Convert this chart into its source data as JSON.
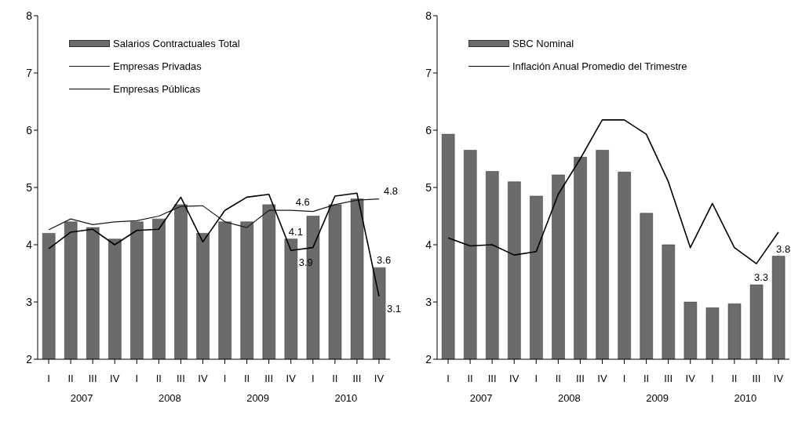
{
  "chart_data": [
    {
      "type": "bar",
      "categories": [
        "I",
        "II",
        "III",
        "IV",
        "I",
        "II",
        "III",
        "IV",
        "I",
        "II",
        "III",
        "IV",
        "I",
        "II",
        "III",
        "IV"
      ],
      "annotations": [
        "2007",
        "2008",
        "2009",
        "2010"
      ],
      "ylim": [
        2,
        8
      ],
      "yticks": [
        2,
        3,
        4,
        5,
        6,
        7,
        8
      ],
      "grid": false,
      "legend": "top left",
      "marker": "none",
      "line_style": "solid",
      "series": [
        {
          "name": "Salarios Contractuales Total",
          "color": "#6b6b6b",
          "values": [
            4.2,
            4.4,
            4.3,
            4.1,
            4.4,
            4.45,
            4.7,
            4.2,
            4.4,
            4.4,
            4.7,
            4.1,
            4.5,
            4.7,
            4.8,
            3.6
          ],
          "value_labels": [
            null,
            null,
            null,
            null,
            null,
            null,
            null,
            null,
            null,
            null,
            null,
            "4.1",
            null,
            null,
            null,
            "3.6"
          ]
        },
        {
          "name": "Empresas Privadas",
          "type": "line",
          "color": "#1a1a1a",
          "values": [
            4.26,
            4.45,
            4.35,
            4.4,
            4.42,
            4.5,
            4.67,
            4.68,
            4.4,
            4.3,
            4.6,
            4.6,
            4.58,
            4.7,
            4.78,
            4.8
          ],
          "value_labels": [
            null,
            null,
            null,
            null,
            null,
            null,
            null,
            null,
            null,
            null,
            null,
            "4.6",
            null,
            null,
            null,
            "4.8"
          ]
        },
        {
          "name": "Empresas Públicas",
          "type": "line",
          "color": "#000000",
          "values": [
            3.93,
            4.22,
            4.27,
            4.0,
            4.25,
            4.27,
            4.83,
            4.05,
            4.6,
            4.83,
            4.88,
            3.9,
            3.95,
            4.85,
            4.9,
            3.1
          ],
          "value_labels": [
            null,
            null,
            null,
            null,
            null,
            null,
            null,
            null,
            null,
            null,
            null,
            "3.9",
            null,
            null,
            null,
            "3.1"
          ]
        }
      ]
    },
    {
      "type": "bar",
      "categories": [
        "I",
        "II",
        "III",
        "IV",
        "I",
        "II",
        "III",
        "IV",
        "I",
        "II",
        "III",
        "IV",
        "I",
        "II",
        "III",
        "IV"
      ],
      "annotations": [
        "2007",
        "2008",
        "2009",
        "2010"
      ],
      "ylim": [
        2,
        8
      ],
      "yticks": [
        2,
        3,
        4,
        5,
        6,
        7,
        8
      ],
      "grid": false,
      "legend": "top left",
      "marker": "none",
      "line_style": "solid",
      "series": [
        {
          "name": "SBC Nominal",
          "color": "#6b6b6b",
          "values": [
            5.93,
            5.65,
            5.28,
            5.1,
            4.85,
            5.22,
            5.53,
            5.65,
            5.27,
            4.55,
            4.0,
            3.0,
            2.9,
            2.97,
            3.3,
            3.8
          ],
          "value_labels": [
            null,
            null,
            null,
            null,
            null,
            null,
            null,
            null,
            null,
            null,
            null,
            null,
            null,
            null,
            "3.3",
            "3.8"
          ]
        },
        {
          "name": "Inflación Anual Promedio del Trimestre",
          "type": "line",
          "color": "#000000",
          "values": [
            4.12,
            3.98,
            4.0,
            3.82,
            3.88,
            4.88,
            5.5,
            6.18,
            6.18,
            5.93,
            5.1,
            3.95,
            4.72,
            3.95,
            3.67,
            4.22
          ]
        }
      ]
    }
  ]
}
